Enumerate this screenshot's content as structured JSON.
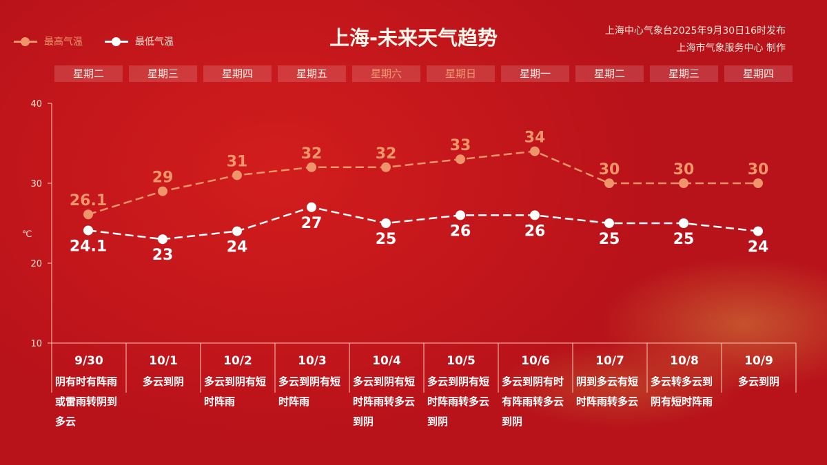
{
  "title": "上海-未来天气趋势",
  "publisher": {
    "line1": "上海中心气象台2025年9月30日16时发布",
    "line2": "上海市气象服务中心 制作"
  },
  "legend": [
    {
      "label": "最高气温",
      "color": "#f0956a"
    },
    {
      "label": "最低气温",
      "color": "#ffffff"
    }
  ],
  "weekdays": [
    "星期二",
    "星期三",
    "星期四",
    "星期五",
    "星期六",
    "星期日",
    "星期一",
    "星期二",
    "星期三",
    "星期四"
  ],
  "weekend_flags": [
    false,
    false,
    false,
    false,
    true,
    true,
    false,
    false,
    false,
    false
  ],
  "chart_data": {
    "type": "line",
    "categories": [
      "9/30",
      "10/1",
      "10/2",
      "10/3",
      "10/4",
      "10/5",
      "10/6",
      "10/7",
      "10/8",
      "10/9"
    ],
    "series": [
      {
        "name": "最高气温",
        "values": [
          26.1,
          29,
          31,
          32,
          32,
          33,
          34,
          30,
          30,
          30
        ],
        "labels": [
          "26.1",
          "29",
          "31",
          "32",
          "32",
          "33",
          "34",
          "30",
          "30",
          "30"
        ],
        "color": "#f0956a",
        "style": "dashed"
      },
      {
        "name": "最低气温",
        "values": [
          24.1,
          23,
          24,
          27,
          25,
          26,
          26,
          25,
          25,
          24
        ],
        "labels": [
          "24.1",
          "23",
          "24",
          "27",
          "25",
          "26",
          "26",
          "25",
          "25",
          "24"
        ],
        "color": "#ffffff",
        "style": "dashed"
      }
    ],
    "ylabel": "℃",
    "ylim": [
      10,
      40
    ],
    "yticks": [
      "10",
      "20",
      "30",
      "40"
    ],
    "grid": false
  },
  "weather": [
    "阴有时有阵雨或雷雨转阴到多云",
    "多云到阴",
    "多云到阴有短时阵雨",
    "多云到阴有短时阵雨",
    "多云到阴有短时阵雨转多云到阴",
    "多云到阴有短时阵雨转多云到阴",
    "多云到阴有时有阵雨转多云到阴",
    "阴到多云有短时阵雨转多云",
    "多云转多云到阴有短时阵雨",
    "多云到阴"
  ]
}
